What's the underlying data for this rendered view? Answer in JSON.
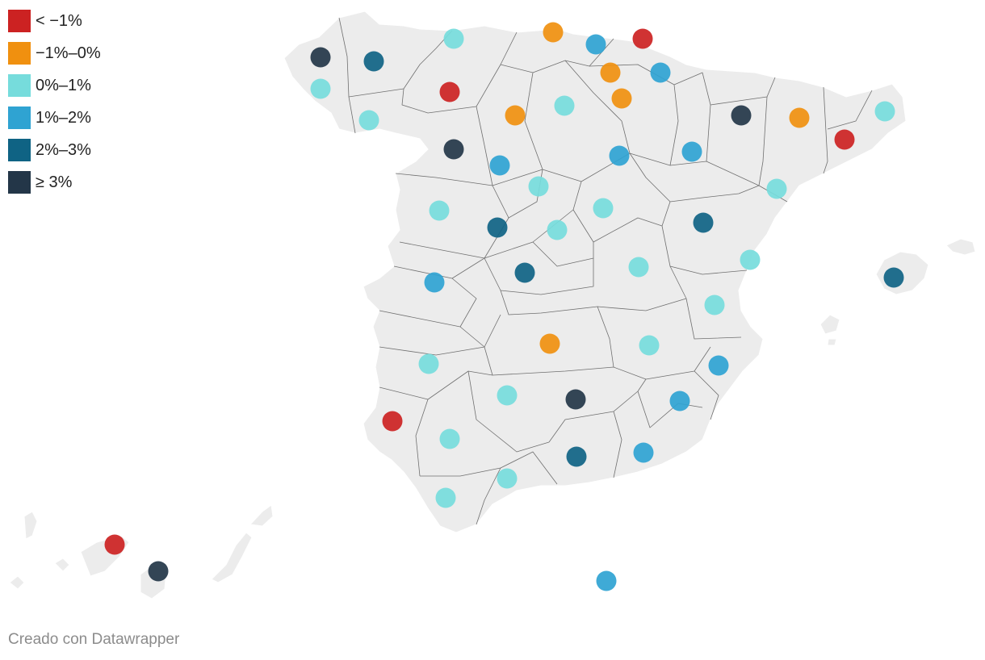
{
  "legend": {
    "items": [
      {
        "label": "< −1%",
        "color": "#cc2222",
        "key": "c0"
      },
      {
        "label": "−1%–0%",
        "color": "#f0900f",
        "key": "c1"
      },
      {
        "label": "0%–1%",
        "color": "#76dcdc",
        "key": "c2"
      },
      {
        "label": "1%–2%",
        "color": "#2fa3d2",
        "key": "c3"
      },
      {
        "label": "2%–3%",
        "color": "#0f6384",
        "key": "c4"
      },
      {
        "label": "≥ 3%",
        "color": "#233648",
        "key": "c5"
      }
    ]
  },
  "footer": {
    "credit": "Creado con Datawrapper"
  },
  "map": {
    "land_color": "#ececec",
    "border_color": "#6f6f6f",
    "provinces": [
      {
        "cls": "c5"
      },
      {
        "cls": "c4"
      },
      {
        "cls": "c2"
      },
      {
        "cls": "c1"
      },
      {
        "cls": "c3"
      },
      {
        "cls": "c0"
      },
      {
        "cls": "c2"
      },
      {
        "cls": "c0"
      },
      {
        "cls": "c1"
      },
      {
        "cls": "c3"
      },
      {
        "cls": "c2"
      },
      {
        "cls": "c1"
      },
      {
        "cls": "c2"
      },
      {
        "cls": "c1"
      },
      {
        "cls": "c5"
      },
      {
        "cls": "c1"
      },
      {
        "cls": "c2"
      },
      {
        "cls": "c0"
      },
      {
        "cls": "c5"
      },
      {
        "cls": "c3"
      },
      {
        "cls": "c3"
      },
      {
        "cls": "c3"
      },
      {
        "cls": "c2"
      },
      {
        "cls": "c2"
      },
      {
        "cls": "c2"
      },
      {
        "cls": "c2"
      },
      {
        "cls": "c4"
      },
      {
        "cls": "c2"
      },
      {
        "cls": "c4"
      },
      {
        "cls": "c2"
      },
      {
        "cls": "c3"
      },
      {
        "cls": "c4"
      },
      {
        "cls": "c2"
      },
      {
        "cls": "c4"
      },
      {
        "cls": "c2"
      },
      {
        "cls": "c1"
      },
      {
        "cls": "c2"
      },
      {
        "cls": "c2"
      },
      {
        "cls": "c3"
      },
      {
        "cls": "c5"
      },
      {
        "cls": "c3"
      },
      {
        "cls": "c0"
      },
      {
        "cls": "c2"
      },
      {
        "cls": "c2"
      },
      {
        "cls": "c4"
      },
      {
        "cls": "c2"
      },
      {
        "cls": "c3"
      },
      {
        "cls": "c2"
      },
      {
        "cls": "c0"
      },
      {
        "cls": "c5"
      },
      {
        "cls": "c3"
      }
    ]
  }
}
